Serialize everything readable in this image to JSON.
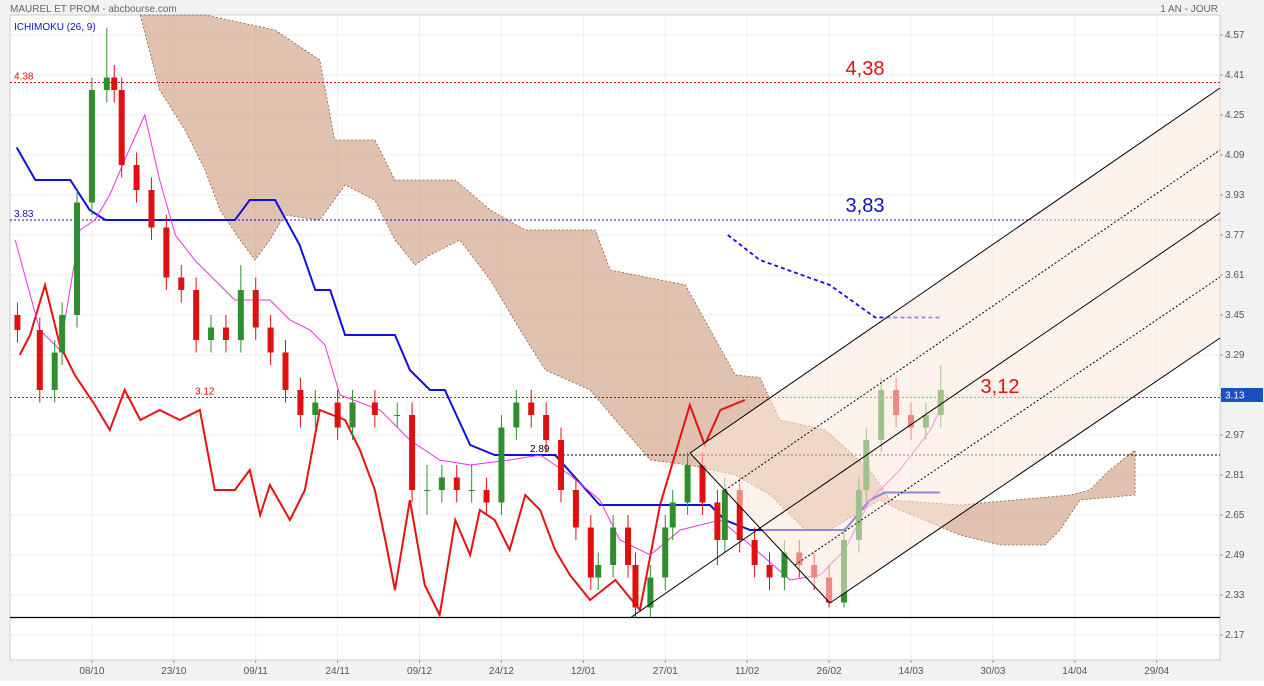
{
  "chart_data": {
    "type": "candlestick",
    "title": "MAUREL ET PROM - abcbourse.com",
    "period": "1 AN - JOUR",
    "indicator": "ICHIMOKU (26, 9)",
    "xlim": [
      0,
      162.5
    ],
    "xticks": [
      {
        "value": 11,
        "label": "08/10"
      },
      {
        "value": 22,
        "label": "23/10"
      },
      {
        "value": 33,
        "label": "09/11"
      },
      {
        "value": 44,
        "label": "24/11"
      },
      {
        "value": 55,
        "label": "09/12"
      },
      {
        "value": 66,
        "label": "24/12"
      },
      {
        "value": 77,
        "label": "12/01"
      },
      {
        "value": 88,
        "label": "27/01"
      },
      {
        "value": 99,
        "label": "11/02"
      },
      {
        "value": 110,
        "label": "26/02"
      },
      {
        "value": 121,
        "label": "14/03"
      },
      {
        "value": 132,
        "label": "30/03"
      },
      {
        "value": 143,
        "label": "14/04"
      },
      {
        "value": 154,
        "label": "29/04"
      }
    ],
    "ylim": [
      2.07,
      4.65
    ],
    "yticks": [
      4.57,
      4.41,
      4.25,
      4.09,
      3.93,
      3.77,
      3.61,
      3.45,
      3.29,
      3.13,
      2.97,
      2.81,
      2.65,
      2.49,
      2.33,
      2.17
    ],
    "grid": true,
    "candles": {
      "up_color": "#2f8f2f",
      "down_color": "#e01010",
      "x": [
        1,
        4,
        6,
        7,
        9,
        11,
        13,
        14,
        15,
        17,
        19,
        21,
        23,
        25,
        27,
        29,
        31,
        33,
        35,
        37,
        39,
        41,
        44,
        46,
        49,
        52,
        54,
        56,
        58,
        60,
        62,
        64,
        66,
        68,
        70,
        72,
        74,
        76,
        78,
        79,
        81,
        83,
        84,
        86,
        88,
        89,
        91,
        93,
        95,
        96,
        98,
        100,
        102,
        104,
        106,
        108,
        110,
        112,
        114,
        115,
        117,
        119,
        121,
        123,
        125
      ],
      "open": [
        3.45,
        3.39,
        3.15,
        3.3,
        3.45,
        3.9,
        4.35,
        4.4,
        4.35,
        4.05,
        3.95,
        3.8,
        3.6,
        3.55,
        3.35,
        3.4,
        3.35,
        3.55,
        3.4,
        3.3,
        3.15,
        3.05,
        3.1,
        3.0,
        3.1,
        3.05,
        3.05,
        2.75,
        2.75,
        2.8,
        2.75,
        2.75,
        2.7,
        3.0,
        3.1,
        3.05,
        2.95,
        2.75,
        2.6,
        2.4,
        2.45,
        2.6,
        2.45,
        2.28,
        2.4,
        2.6,
        2.7,
        2.85,
        2.7,
        2.55,
        2.75,
        2.55,
        2.45,
        2.4,
        2.5,
        2.45,
        2.4,
        2.3,
        2.55,
        2.75,
        2.95,
        3.15,
        3.05,
        3.0,
        3.05
      ],
      "high": [
        3.5,
        3.44,
        3.35,
        3.5,
        3.95,
        4.4,
        4.6,
        4.45,
        4.4,
        4.1,
        4.0,
        3.85,
        3.65,
        3.6,
        3.45,
        3.45,
        3.65,
        3.6,
        3.45,
        3.35,
        3.2,
        3.15,
        3.15,
        3.15,
        3.15,
        3.1,
        3.1,
        2.85,
        2.85,
        2.85,
        2.85,
        2.8,
        3.05,
        3.15,
        3.15,
        3.1,
        3.0,
        2.8,
        2.65,
        2.5,
        2.65,
        2.65,
        2.5,
        2.45,
        2.65,
        2.75,
        2.9,
        2.9,
        2.75,
        2.8,
        2.8,
        2.6,
        2.5,
        2.55,
        2.55,
        2.5,
        2.45,
        2.6,
        2.8,
        3.0,
        3.2,
        3.2,
        3.1,
        3.1,
        3.25
      ],
      "low": [
        3.34,
        3.1,
        3.1,
        3.25,
        3.4,
        3.85,
        4.3,
        4.3,
        4.0,
        3.9,
        3.75,
        3.55,
        3.5,
        3.3,
        3.3,
        3.3,
        3.3,
        3.35,
        3.25,
        3.1,
        3.0,
        3.0,
        2.95,
        2.95,
        3.0,
        3.0,
        2.7,
        2.65,
        2.7,
        2.7,
        2.7,
        2.65,
        2.65,
        2.95,
        3.0,
        2.9,
        2.7,
        2.55,
        2.35,
        2.35,
        2.4,
        2.4,
        2.24,
        2.24,
        2.35,
        2.55,
        2.65,
        2.65,
        2.45,
        2.5,
        2.5,
        2.4,
        2.35,
        2.35,
        2.4,
        2.35,
        2.28,
        2.28,
        2.5,
        2.7,
        2.9,
        3.0,
        2.95,
        2.95,
        3.0
      ],
      "close": [
        3.39,
        3.15,
        3.3,
        3.45,
        3.9,
        4.35,
        4.4,
        4.35,
        4.05,
        3.95,
        3.8,
        3.6,
        3.55,
        3.35,
        3.4,
        3.35,
        3.55,
        3.4,
        3.3,
        3.15,
        3.05,
        3.1,
        3.0,
        3.1,
        3.05,
        3.05,
        2.75,
        2.75,
        2.8,
        2.75,
        2.75,
        2.7,
        3.0,
        3.1,
        3.05,
        2.95,
        2.75,
        2.6,
        2.4,
        2.45,
        2.6,
        2.45,
        2.28,
        2.4,
        2.6,
        2.7,
        2.85,
        2.7,
        2.55,
        2.75,
        2.55,
        2.45,
        2.4,
        2.5,
        2.45,
        2.4,
        2.3,
        2.55,
        2.75,
        2.95,
        3.15,
        3.05,
        3.0,
        3.05,
        3.15
      ]
    },
    "cloud": {
      "color": "#c98f6f",
      "upper": {
        "x": [
          17.5,
          26.2,
          35.6,
          41.6,
          43.6,
          49,
          51.7,
          59.8,
          64.5,
          69.2,
          78.6,
          80.6,
          90.7,
          97.4,
          100.7,
          103.4,
          109.5,
          115.5,
          118.2,
          127.6,
          142.4,
          145,
          147.7,
          151.1
        ],
        "values": [
          4.65,
          4.65,
          4.59,
          4.47,
          4.15,
          4.15,
          3.99,
          3.99,
          3.87,
          3.79,
          3.79,
          3.63,
          3.57,
          3.21,
          3.2,
          3.03,
          2.99,
          2.83,
          2.71,
          2.69,
          2.73,
          2.75,
          2.83,
          2.91
        ]
      },
      "lower": {
        "x": [
          17.5,
          20.1,
          23.5,
          26.2,
          28.2,
          30.9,
          32.9,
          34.9,
          36.9,
          41.6,
          45,
          49,
          51.7,
          54.4,
          56.4,
          60.4,
          64.5,
          68.5,
          71.9,
          77.9,
          81.3,
          86,
          91.3,
          97.4,
          102.1,
          106.8,
          110.1,
          116.8,
          119.5,
          127.6,
          133,
          139,
          141,
          143.7,
          151.1
        ],
        "values": [
          4.65,
          4.35,
          4.19,
          4.03,
          3.87,
          3.75,
          3.67,
          3.75,
          3.85,
          3.83,
          3.97,
          3.91,
          3.75,
          3.65,
          3.69,
          3.75,
          3.59,
          3.39,
          3.23,
          3.15,
          3.03,
          2.87,
          2.85,
          2.81,
          2.73,
          2.59,
          2.59,
          2.71,
          2.67,
          2.57,
          2.53,
          2.53,
          2.59,
          2.71,
          2.73
        ]
      }
    },
    "kijun": {
      "color": "#1010e0",
      "x": [
        0.9,
        3.4,
        8.1,
        10.7,
        12.8,
        30.2,
        32.2,
        35.6,
        38.9,
        41,
        43,
        45,
        51.7,
        53.7,
        56.4,
        58.4,
        61.8,
        65.1,
        73.2,
        79.2,
        94,
        96,
        99.4,
        112.1,
        115.5,
        117.5,
        124.9
      ],
      "values": [
        4.12,
        3.99,
        3.99,
        3.87,
        3.83,
        3.83,
        3.91,
        3.91,
        3.73,
        3.55,
        3.55,
        3.37,
        3.37,
        3.23,
        3.15,
        3.15,
        2.93,
        2.89,
        2.89,
        2.69,
        2.69,
        2.63,
        2.59,
        2.59,
        2.71,
        2.74,
        2.74
      ]
    },
    "kijun_projection": {
      "color": "#1010e0",
      "dashed": true,
      "x": [
        96.4,
        100.7,
        110.1,
        116.2,
        124.9
      ],
      "values": [
        3.77,
        3.67,
        3.57,
        3.44,
        3.44
      ]
    },
    "tenkan": {
      "color": "#f030e0",
      "x": [
        0.7,
        4,
        6.7,
        9.4,
        11.4,
        13.4,
        15.4,
        18.1,
        20.1,
        22.2,
        24.8,
        27.5,
        30.2,
        34.9,
        37.6,
        40.3,
        42.3,
        44.3,
        49.7,
        53.7,
        57.7,
        61.8,
        67.1,
        71.2,
        75.2,
        79.2,
        81.9,
        86,
        90,
        95.4,
        99.4,
        104.8,
        108.8,
        112.1,
        115.5,
        119.5,
        123.6,
        124.9
      ],
      "values": [
        3.75,
        3.39,
        3.31,
        3.79,
        3.83,
        3.93,
        4.07,
        4.25,
        3.99,
        3.77,
        3.67,
        3.59,
        3.51,
        3.51,
        3.43,
        3.39,
        3.33,
        3.13,
        3.07,
        2.95,
        2.87,
        2.85,
        2.87,
        2.89,
        2.81,
        2.71,
        2.55,
        2.49,
        2.59,
        2.63,
        2.53,
        2.39,
        2.41,
        2.51,
        2.71,
        2.83,
        2.99,
        3.07
      ]
    },
    "chikou": {
      "color": "#e81010",
      "x": [
        1.3,
        2.7,
        4.7,
        6.7,
        8.7,
        11.4,
        13.4,
        15.4,
        17.5,
        20.1,
        22.8,
        25.5,
        27.5,
        30.2,
        32.2,
        33.6,
        34.9,
        37.6,
        39.6,
        41.6,
        45,
        47,
        49,
        50.4,
        51.7,
        53.7,
        55.7,
        57.7,
        59.8,
        61.8,
        63.1,
        65.1,
        67.1,
        69.2,
        71.2,
        73.2,
        75.2,
        77.9,
        81.3,
        84.6,
        87.3,
        91.3,
        93.3,
        95.4,
        98.7
      ],
      "values": [
        3.29,
        3.37,
        3.57,
        3.33,
        3.21,
        3.09,
        2.99,
        3.15,
        3.03,
        3.07,
        3.03,
        3.07,
        2.75,
        2.75,
        2.83,
        2.65,
        2.77,
        2.63,
        2.75,
        3.07,
        3.03,
        2.91,
        2.75,
        2.55,
        2.35,
        2.71,
        2.37,
        2.25,
        2.63,
        2.49,
        2.67,
        2.63,
        2.51,
        2.73,
        2.67,
        2.51,
        2.41,
        2.31,
        2.39,
        2.27,
        2.69,
        3.09,
        2.93,
        3.07,
        3.11
      ]
    },
    "levels": [
      {
        "value": 4.38,
        "label": "4.38",
        "color": "#e01010",
        "annotation": "4,38"
      },
      {
        "value": 3.83,
        "label": "3.83",
        "color": "#1010c0",
        "annotation": "3,83"
      },
      {
        "value": 3.12,
        "label": "3.12",
        "color": "#e01010",
        "annotation": "3,12"
      },
      {
        "value": 2.89,
        "label": "2.89",
        "color": "#000000"
      }
    ],
    "support": {
      "value": 2.24,
      "color": "#000000"
    },
    "last_price": 3.13
  }
}
